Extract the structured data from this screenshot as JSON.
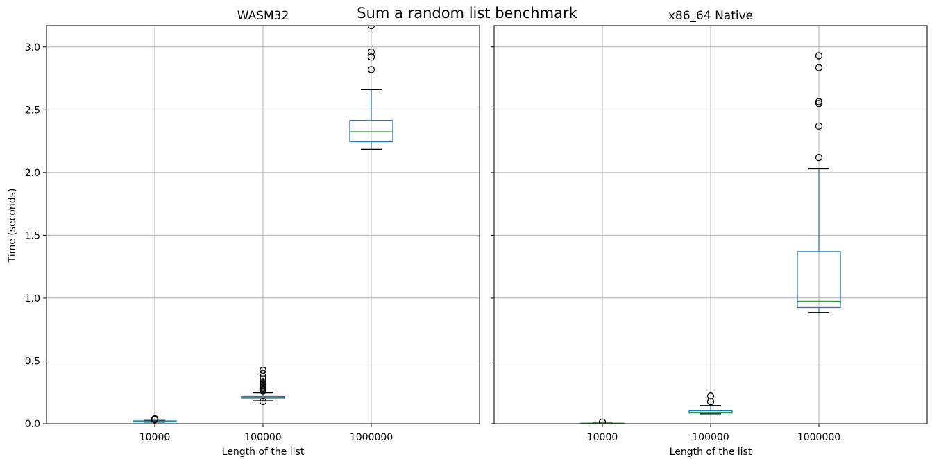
{
  "figure": {
    "suptitle": "Sum a random list benchmark"
  },
  "shared_ylabel": "Time (seconds)",
  "colors": {
    "box": "#1f77b4",
    "median": "#2ca02c",
    "grid": "#b0b0b0",
    "flier": "#000000"
  },
  "chart_data": [
    {
      "type": "box",
      "title": "WASM32",
      "xlabel": "Length of the list",
      "ylabel": "Time (seconds)",
      "ylim": [
        0,
        3.17
      ],
      "yticks": [
        0.0,
        0.5,
        1.0,
        1.5,
        2.0,
        2.5,
        3.0
      ],
      "ytick_labels": [
        "0.0",
        "0.5",
        "1.0",
        "1.5",
        "2.0",
        "2.5",
        "3.0"
      ],
      "grid": true,
      "categories": [
        "10000",
        "100000",
        "1000000"
      ],
      "boxes": [
        {
          "whisker_low": 0.012,
          "q1": 0.016,
          "median": 0.019,
          "q3": 0.022,
          "whisker_high": 0.026,
          "fliers": [
            0.033,
            0.036,
            0.039,
            0.031
          ]
        },
        {
          "whisker_low": 0.182,
          "q1": 0.198,
          "median": 0.207,
          "q3": 0.218,
          "whisker_high": 0.245,
          "fliers": [
            0.177,
            0.262,
            0.272,
            0.282,
            0.292,
            0.302,
            0.312,
            0.322,
            0.335,
            0.355,
            0.375,
            0.4,
            0.425
          ]
        },
        {
          "whisker_low": 2.185,
          "q1": 2.245,
          "median": 2.325,
          "q3": 2.415,
          "whisker_high": 2.66,
          "fliers": [
            2.82,
            2.92,
            2.96,
            3.17
          ]
        }
      ]
    },
    {
      "type": "box",
      "title": "x86_64 Native",
      "xlabel": "Length of the list",
      "ylim": [
        0,
        3.17
      ],
      "yticks": [
        0.0,
        0.5,
        1.0,
        1.5,
        2.0,
        2.5,
        3.0
      ],
      "grid": true,
      "categories": [
        "10000",
        "100000",
        "1000000"
      ],
      "boxes": [
        {
          "whisker_low": 0.001,
          "q1": 0.002,
          "median": 0.003,
          "q3": 0.004,
          "whisker_high": 0.006,
          "fliers": [
            0.012
          ]
        },
        {
          "whisker_low": 0.078,
          "q1": 0.085,
          "median": 0.092,
          "q3": 0.103,
          "whisker_high": 0.145,
          "fliers": [
            0.175,
            0.22
          ]
        },
        {
          "whisker_low": 0.885,
          "q1": 0.925,
          "median": 0.975,
          "q3": 1.37,
          "whisker_high": 2.03,
          "fliers": [
            2.12,
            2.37,
            2.55,
            2.565,
            2.835,
            2.93
          ]
        }
      ]
    }
  ]
}
